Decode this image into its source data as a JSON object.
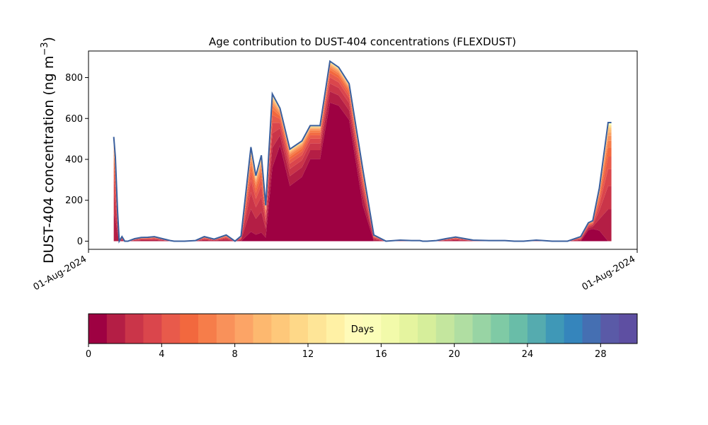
{
  "chart_data": {
    "type": "area",
    "title": "Age contribution to DUST-404 concentrations (FLEXDUST)",
    "ylabel_main": "DUST-404 concentration (ng m",
    "ylabel_sup": "−3",
    "ylabel_close": ")",
    "xlabel": "",
    "x_tick_labels": [
      "01-Aug-2024",
      "01-Aug-2024"
    ],
    "ylim": [
      -40,
      930
    ],
    "y_ticks": [
      0,
      200,
      400,
      600,
      800
    ],
    "x_domain": [
      0,
      100
    ],
    "series_note": "",
    "total": {
      "x": [
        4.6,
        4.9,
        5.3,
        5.6,
        6.1,
        6.6,
        7.2,
        8.4,
        9.6,
        10.8,
        12.0,
        13.5,
        14.9,
        15.6,
        17.5,
        19.5,
        21.1,
        22.9,
        25.1,
        26.7,
        27.8,
        29.6,
        30.5,
        31.5,
        32.3,
        33.5,
        34.9,
        36.7,
        38.9,
        40.4,
        42.2,
        44.0,
        45.6,
        47.5,
        50.0,
        52.0,
        54.2,
        56.8,
        58.9,
        60.4,
        60.9,
        61.7,
        63.4,
        65.1,
        66.9,
        70.1,
        73.0,
        75.9,
        77.6,
        79.3,
        81.6,
        84.5,
        87.3,
        89.7,
        91.1,
        91.9,
        93.1,
        94.7,
        95.3
      ],
      "y": [
        510,
        410,
        145,
        0,
        22,
        0,
        0,
        12,
        18,
        19,
        22,
        12,
        3,
        0,
        0,
        3,
        22,
        10,
        30,
        0,
        25,
        460,
        320,
        420,
        175,
        720,
        650,
        450,
        490,
        565,
        565,
        880,
        850,
        770,
        350,
        30,
        0,
        5,
        3,
        3,
        0,
        0,
        3,
        12,
        20,
        5,
        3,
        3,
        0,
        0,
        5,
        0,
        0,
        22,
        90,
        100,
        260,
        580,
        580
      ]
    },
    "dominant_fraction": [
      0.0,
      0.0,
      0.0,
      0.0,
      0.0,
      0.0,
      0.0,
      0.0,
      0.0,
      0.0,
      0.0,
      0.0,
      0.0,
      0.0,
      0.0,
      0.0,
      0.0,
      0.0,
      0.0,
      0.0,
      0.0,
      0.1,
      0.1,
      0.1,
      0.1,
      0.5,
      0.72,
      0.6,
      0.64,
      0.71,
      0.71,
      0.77,
      0.78,
      0.77,
      0.5,
      0.0,
      0.0,
      0.0,
      0.0,
      0.0,
      0.0,
      0.0,
      0.0,
      0.0,
      0.0,
      0.0,
      0.0,
      0.0,
      0.0,
      0.0,
      0.0,
      0.0,
      0.0,
      0.0,
      0.6,
      0.6,
      0.2,
      0.0,
      0.0
    ],
    "colorbar": {
      "label": "Days",
      "range": [
        0,
        30
      ],
      "ticks": [
        0,
        4,
        8,
        12,
        16,
        20,
        24,
        28
      ],
      "colors": [
        "#9e0142",
        "#b41e45",
        "#ca3549",
        "#da464c",
        "#e85a4b",
        "#f2683e",
        "#f67d4a",
        "#f9915a",
        "#fca466",
        "#fdb86f",
        "#fec87a",
        "#fed888",
        "#fee597",
        "#fff1a5",
        "#fffbb9",
        "#fbfdb8",
        "#f2faaa",
        "#e5f49f",
        "#d6ee9b",
        "#c4e69e",
        "#b0dea2",
        "#98d4a4",
        "#7fcaa5",
        "#69bda8",
        "#55abaf",
        "#3f98b7",
        "#3585bc",
        "#456fb2",
        "#5a5aa7",
        "#5e4fa2"
      ],
      "outline_color": "#3a5f9e"
    }
  }
}
